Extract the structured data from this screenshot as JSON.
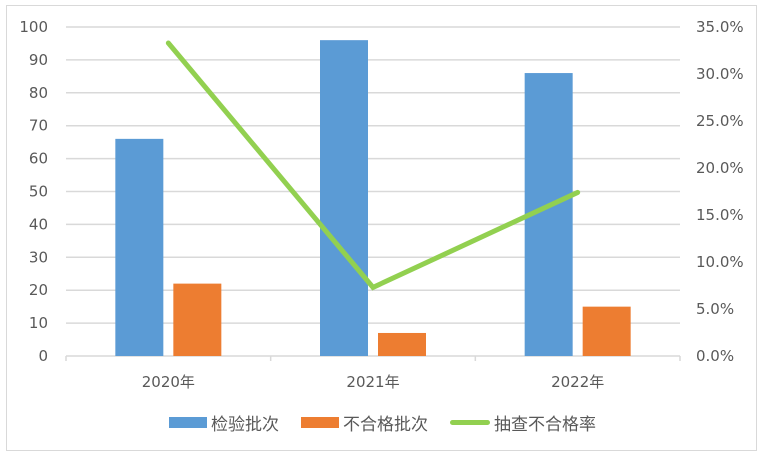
{
  "chart_data": {
    "type": "bar",
    "title": "",
    "categories": [
      "2020年",
      "2021年",
      "2022年"
    ],
    "series": [
      {
        "name": "检验批次",
        "type": "bar",
        "axis": "left",
        "color": "#5b9bd5",
        "values": [
          66,
          96,
          86
        ]
      },
      {
        "name": "不合格批次",
        "type": "bar",
        "axis": "left",
        "color": "#ed7d31",
        "values": [
          22,
          7,
          15
        ]
      },
      {
        "name": "抽查不合格率",
        "type": "line",
        "axis": "right",
        "color": "#92d050",
        "values": [
          33.3,
          7.3,
          17.4
        ],
        "unit": "%"
      }
    ],
    "xlabel": "",
    "ylabel": "",
    "ylim": [
      0,
      100
    ],
    "y_ticks": [
      "0",
      "10",
      "20",
      "30",
      "40",
      "50",
      "60",
      "70",
      "80",
      "90",
      "100"
    ],
    "y2lim": [
      0,
      35
    ],
    "y2_ticks": [
      "0.0%",
      "5.0%",
      "10.0%",
      "15.0%",
      "20.0%",
      "25.0%",
      "30.0%",
      "35.0%"
    ],
    "grid": true,
    "legend_position": "bottom"
  },
  "legend": {
    "items": [
      {
        "label": "检验批次",
        "color": "#5b9bd5"
      },
      {
        "label": "不合格批次",
        "color": "#ed7d31"
      },
      {
        "label": "抽查不合格率",
        "color": "#92d050"
      }
    ]
  }
}
